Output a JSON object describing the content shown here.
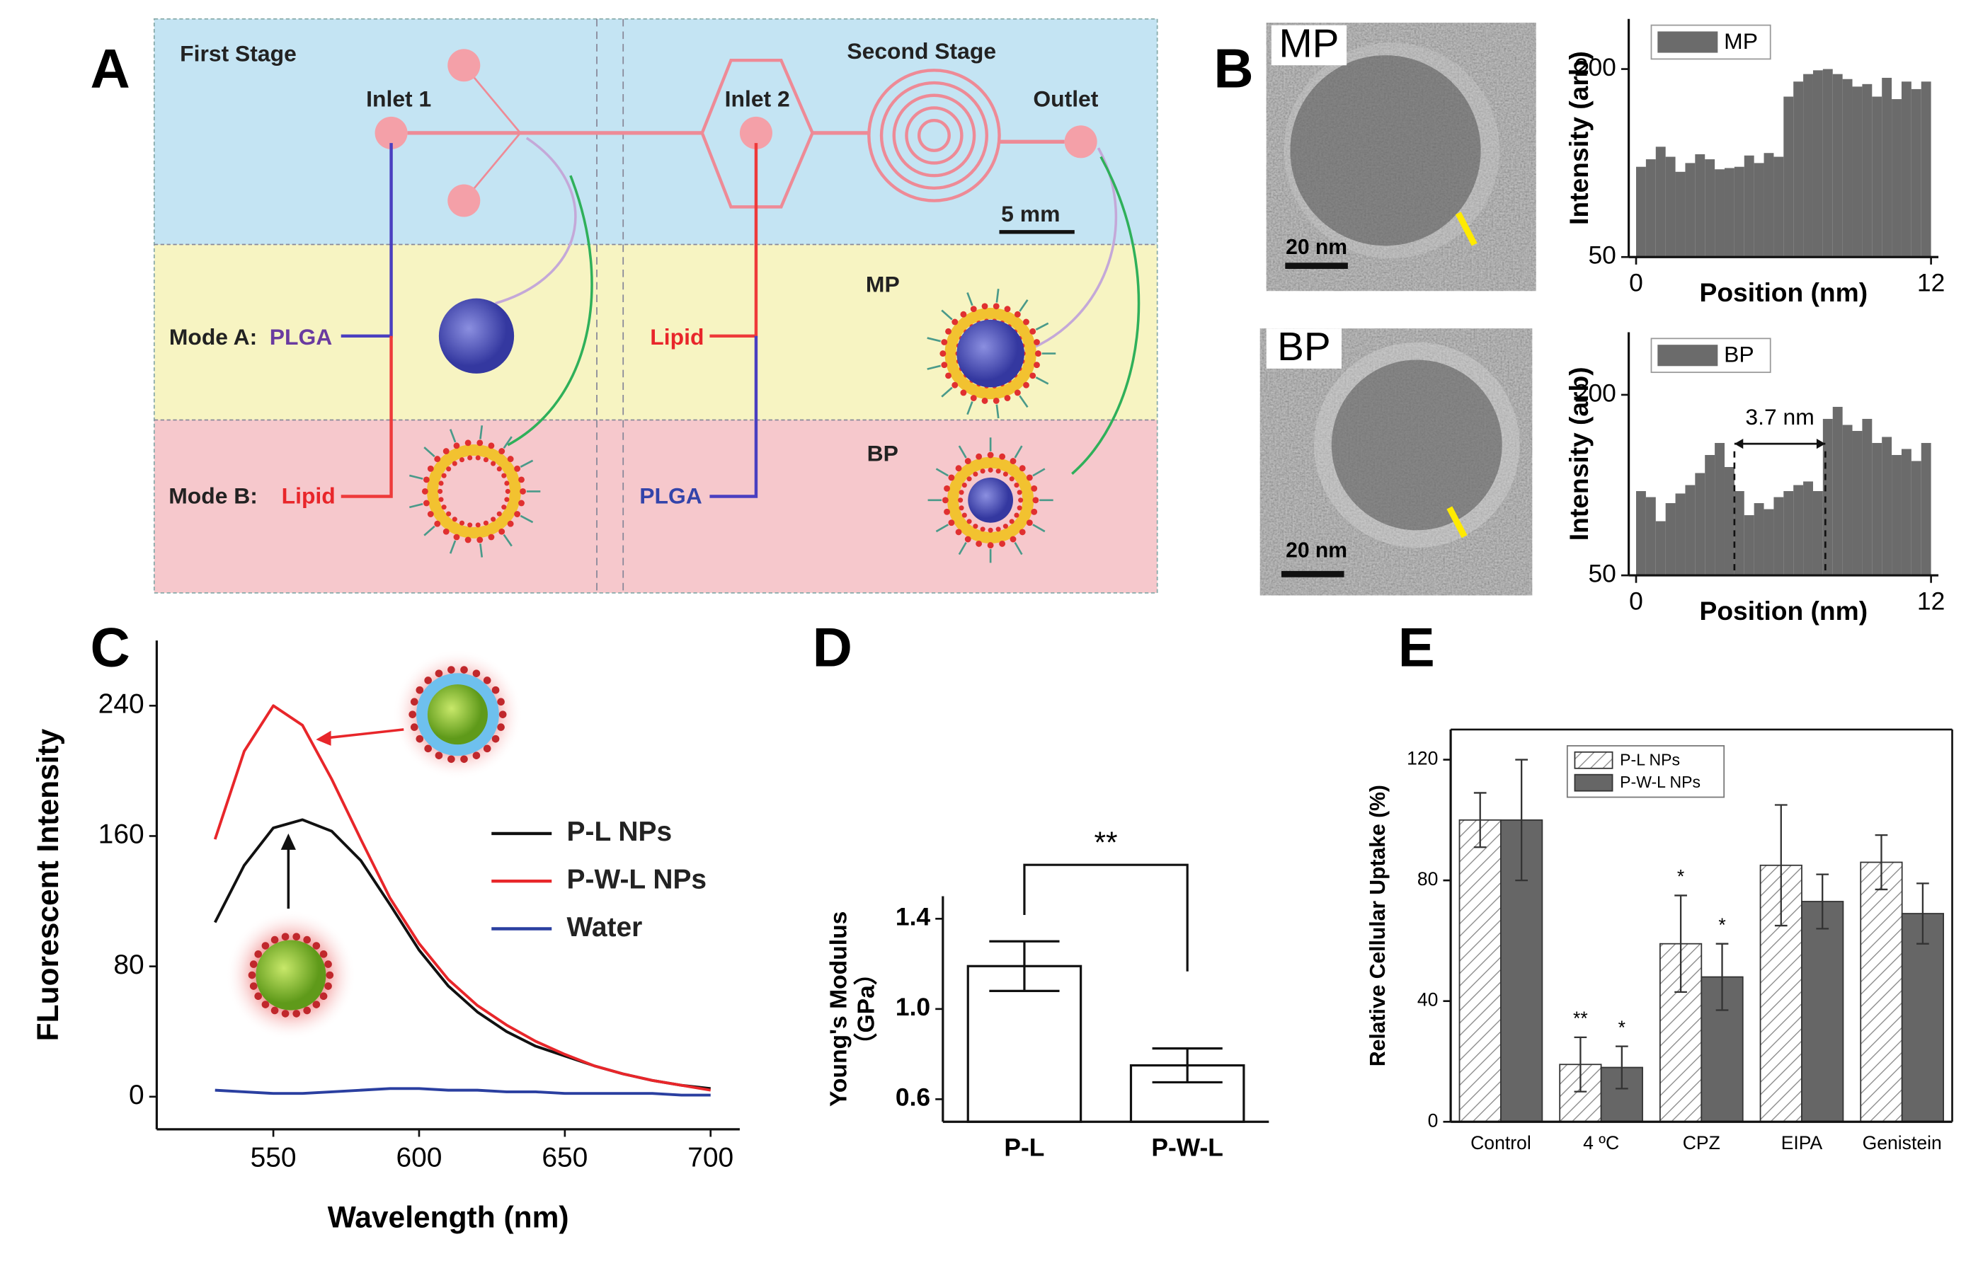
{
  "panel_labels": [
    "A",
    "B",
    "C",
    "D",
    "E"
  ],
  "diagram": {
    "first_stage": "First Stage",
    "second_stage": "Second Stage",
    "inlet_1": "Inlet 1",
    "inlet_2": "Inlet 2",
    "outlet": "Outlet",
    "scale_bar": "5 mm",
    "mode_a": "Mode A:",
    "mode_a_first": "PLGA",
    "mode_a_second": "Lipid",
    "mode_b": "Mode B:",
    "mode_b_first": "Lipid",
    "mode_b_second": "PLGA",
    "mp": "MP",
    "bp": "BP"
  },
  "micrographs": [
    {
      "label": "MP",
      "scale_bar": "20 nm"
    },
    {
      "label": "BP",
      "scale_bar": "20 nm"
    }
  ],
  "chart_data": [
    {
      "type": "histogram",
      "xlabel": "Position (nm)",
      "ylabel": "Intensity (arb)",
      "bins": [
        0,
        0.4,
        0.8,
        1.2,
        1.6,
        2,
        2.4,
        2.8,
        3.2,
        3.6,
        4,
        4.4,
        4.8,
        5.2,
        5.6,
        6,
        6.4,
        6.8,
        7.2,
        7.6,
        8,
        8.4,
        8.8,
        9.2,
        9.6,
        10,
        10.4,
        10.8,
        11.2,
        11.6,
        12
      ],
      "series": [
        {
          "name": "MP",
          "color": "#6b6b6b",
          "values": [
            122,
            128,
            138,
            130,
            118,
            125,
            132,
            128,
            120,
            121,
            122,
            131,
            125,
            133,
            130,
            178,
            190,
            196,
            199,
            200,
            196,
            192,
            186,
            188,
            178,
            193,
            176,
            190,
            184,
            190
          ]
        }
      ],
      "xlim": [
        -0.3,
        12.3
      ],
      "ylim": [
        50,
        240
      ],
      "xticks": [
        0,
        12
      ],
      "yticks": [
        50,
        200
      ]
    },
    {
      "type": "histogram",
      "xlabel": "Position (nm)",
      "ylabel": "Intensity (arb)",
      "bins": [
        0,
        0.4,
        0.8,
        1.2,
        1.6,
        2,
        2.4,
        2.8,
        3.2,
        3.6,
        4,
        4.4,
        4.8,
        5.2,
        5.6,
        6,
        6.4,
        6.8,
        7.2,
        7.6,
        8,
        8.4,
        8.8,
        9.2,
        9.6,
        10,
        10.4,
        10.8,
        11.2,
        11.6,
        12
      ],
      "series": [
        {
          "name": "BP",
          "color": "#6b6b6b",
          "values": [
            120,
            115,
            95,
            110,
            118,
            125,
            135,
            150,
            160,
            140,
            120,
            100,
            110,
            105,
            115,
            120,
            125,
            128,
            120,
            180,
            190,
            175,
            170,
            180,
            160,
            165,
            150,
            155,
            145,
            160
          ]
        }
      ],
      "dashed_lines": [
        4.0,
        7.7
      ],
      "annotation": "3.7 nm",
      "xlim": [
        -0.3,
        12.3
      ],
      "ylim": [
        50,
        252
      ],
      "xticks": [
        0,
        12
      ],
      "yticks": [
        50,
        200
      ]
    },
    {
      "type": "line",
      "xlabel": "Wavelength (nm)",
      "ylabel": "FLuorescent Intensity",
      "x": [
        530,
        540,
        550,
        560,
        570,
        580,
        590,
        600,
        610,
        620,
        630,
        640,
        650,
        660,
        670,
        680,
        690,
        700
      ],
      "series": [
        {
          "name": "P-L NPs",
          "color": "#111111",
          "values": [
            107,
            142,
            165,
            170,
            163,
            145,
            118,
            90,
            68,
            52,
            40,
            31,
            25,
            19,
            14,
            10,
            7,
            5
          ]
        },
        {
          "name": "P-W-L NPs",
          "color": "#e8262a",
          "values": [
            158,
            212,
            240,
            228,
            195,
            158,
            122,
            94,
            72,
            56,
            44,
            34,
            26,
            19,
            14,
            10,
            7,
            4
          ]
        },
        {
          "name": "Water",
          "color": "#2a3fa0",
          "values": [
            4,
            3,
            2,
            2,
            3,
            4,
            5,
            5,
            4,
            4,
            3,
            3,
            2,
            2,
            2,
            2,
            1,
            1
          ]
        }
      ],
      "xlim": [
        510,
        710
      ],
      "ylim": [
        -20,
        280
      ],
      "xticks": [
        550,
        600,
        650,
        700
      ],
      "yticks": [
        0,
        80,
        160,
        240
      ]
    },
    {
      "type": "bar",
      "ylabel": "Young's Modulus",
      "ylabel_unit": "（GPa）",
      "annotation": "**",
      "categories": [
        "P-L",
        "P-W-L"
      ],
      "values": [
        1.19,
        0.75
      ],
      "errors": [
        0.11,
        0.075
      ],
      "color": "#ffffff",
      "ylim": [
        0.5,
        1.5
      ],
      "yticks": [
        {
          "value": 0.6,
          "label": "0.6"
        },
        {
          "value": 1.0,
          "label": "1.0"
        },
        {
          "value": 1.4,
          "label": "1.4"
        }
      ]
    },
    {
      "type": "grouped_bar",
      "ylabel": "Relative Cellular Uptake (%)",
      "categories": [
        "Control",
        "4 ºC",
        "CPZ",
        "EIPA",
        "Genistein"
      ],
      "series": [
        {
          "name": "P-L NPs",
          "color": "#ffffff",
          "hatch": true,
          "values": [
            100,
            19,
            59,
            85,
            86
          ],
          "errors": [
            9,
            9,
            16,
            20,
            9
          ],
          "significance": [
            null,
            "**",
            "*",
            null,
            null
          ]
        },
        {
          "name": "P-W-L NPs",
          "color": "#666666",
          "hatch": false,
          "values": [
            100,
            18,
            48,
            73,
            69
          ],
          "errors": [
            20,
            7,
            11,
            9,
            10
          ],
          "significance": [
            null,
            "*",
            "*",
            null,
            null
          ]
        }
      ],
      "ylim": [
        0,
        130
      ],
      "yticks": [
        0,
        40,
        80,
        120
      ]
    }
  ]
}
